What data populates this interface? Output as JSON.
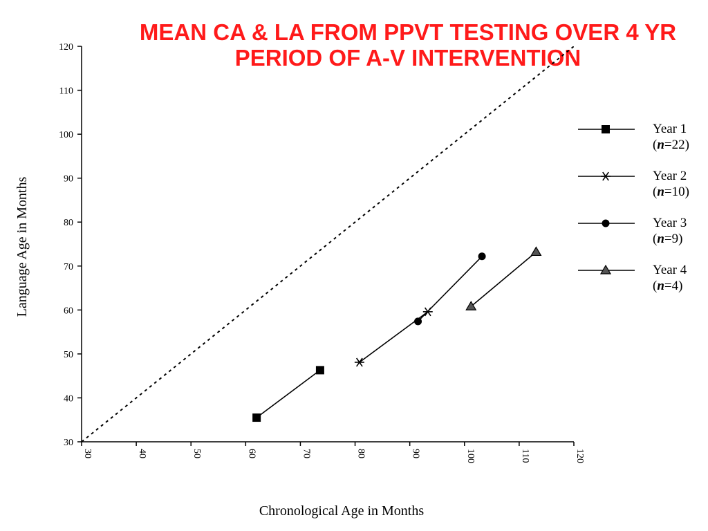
{
  "slide_title": "MEAN CA & LA FROM PPVT TESTING OVER 4 YR PERIOD OF A-V INTERVENTION",
  "chart_data": {
    "type": "line",
    "title": "MEAN CA & LA FROM PPVT TESTING OVER 4 YR PERIOD OF A-V INTERVENTION",
    "xlabel": "Chronological Age in Months",
    "ylabel": "Language Age in Months",
    "xlim": [
      30,
      120
    ],
    "ylim": [
      30,
      120
    ],
    "xticks": [
      30,
      40,
      50,
      60,
      70,
      80,
      90,
      100,
      110,
      120
    ],
    "yticks": [
      30,
      40,
      50,
      60,
      70,
      80,
      90,
      100,
      110,
      120
    ],
    "reference_line": {
      "style": "dotted",
      "points": [
        [
          30,
          30
        ],
        [
          120,
          120
        ]
      ]
    },
    "legend_position": "right",
    "series": [
      {
        "name": "Year 1",
        "n_label": "n",
        "n_value": "=22)",
        "marker": "square",
        "points": [
          [
            62.0,
            35.5
          ],
          [
            73.6,
            46.3
          ]
        ]
      },
      {
        "name": "Year 2",
        "n_label": "n",
        "n_value": "=10)",
        "marker": "asterisk",
        "points": [
          [
            80.8,
            48.1
          ],
          [
            93.3,
            59.6
          ]
        ]
      },
      {
        "name": "Year 3",
        "n_label": "n",
        "n_value": "=9)",
        "marker": "circle",
        "points": [
          [
            91.5,
            57.4
          ],
          [
            103.2,
            72.2
          ]
        ]
      },
      {
        "name": "Year 4",
        "n_label": "n",
        "n_value": "=4)",
        "marker": "triangle",
        "points": [
          [
            101.2,
            60.8
          ],
          [
            113.1,
            73.2
          ]
        ]
      }
    ]
  }
}
